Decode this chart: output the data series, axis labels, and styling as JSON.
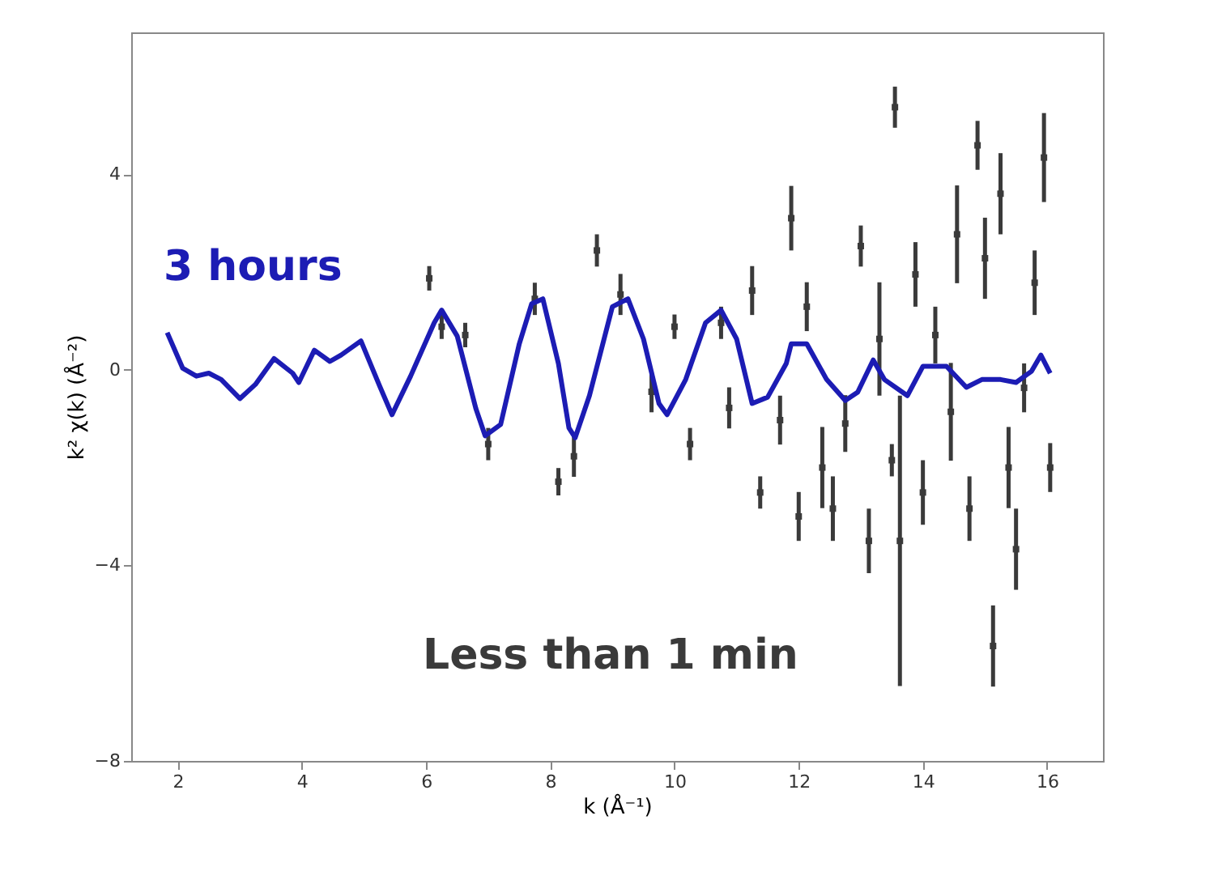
{
  "chart_data": {
    "type": "line",
    "xlabel": "k (Å⁻¹)",
    "ylabel": "k² χ(k) (Å⁻²)",
    "xlim": [
      1.25,
      16.9
    ],
    "ylim": [
      -8,
      6.9
    ],
    "xticks": [
      2,
      4,
      6,
      8,
      10,
      12,
      14,
      16
    ],
    "yticks": [
      -8,
      -4,
      0,
      4
    ],
    "grid": false,
    "marker": "none",
    "series": [
      {
        "name": "Less than 1 min",
        "type": "scatter",
        "marker": "square",
        "color": "#3a3a3a",
        "x": [
          6.05,
          6.25,
          6.63,
          7.0,
          7.75,
          8.13,
          8.38,
          8.75,
          9.13,
          9.63,
          10.0,
          10.25,
          10.75,
          10.88,
          11.25,
          11.38,
          11.7,
          11.88,
          12.0,
          12.13,
          12.38,
          12.55,
          12.75,
          13.0,
          13.13,
          13.3,
          13.5,
          13.55,
          13.63,
          13.88,
          14.0,
          14.2,
          14.45,
          14.55,
          14.75,
          14.88,
          15.0,
          15.13,
          15.25,
          15.38,
          15.5,
          15.63,
          15.8,
          15.95,
          16.05
        ],
        "values": [
          1.87,
          0.88,
          0.71,
          -1.52,
          1.45,
          -2.29,
          -1.77,
          2.44,
          1.54,
          -0.45,
          0.88,
          -1.52,
          0.96,
          -0.78,
          1.62,
          -2.51,
          -1.03,
          3.1,
          -3.0,
          1.29,
          -2.0,
          -2.84,
          -1.1,
          2.53,
          -3.5,
          0.63,
          -1.85,
          5.37,
          -3.5,
          1.95,
          -2.51,
          0.71,
          -0.86,
          2.77,
          -2.84,
          4.59,
          2.28,
          -5.65,
          3.6,
          -2.0,
          -3.67,
          -0.37,
          1.78,
          4.34,
          -2.0
        ],
        "errors": [
          0.25,
          0.25,
          0.25,
          0.33,
          0.33,
          0.28,
          0.42,
          0.33,
          0.42,
          0.42,
          0.25,
          0.33,
          0.33,
          0.42,
          0.5,
          0.33,
          0.5,
          0.66,
          0.5,
          0.5,
          0.83,
          0.66,
          0.58,
          0.42,
          0.66,
          1.16,
          0.33,
          0.42,
          2.97,
          0.66,
          0.66,
          0.58,
          1.0,
          1.0,
          0.66,
          0.5,
          0.83,
          0.83,
          0.83,
          0.83,
          0.83,
          0.5,
          0.66,
          0.91,
          0.5
        ]
      },
      {
        "name": "3 hours",
        "color": "#1c1cb4",
        "x": [
          1.83,
          2.08,
          2.3,
          2.5,
          2.7,
          3.0,
          3.25,
          3.55,
          3.85,
          3.95,
          4.2,
          4.45,
          4.63,
          4.95,
          5.25,
          5.45,
          5.75,
          6.13,
          6.25,
          6.5,
          6.8,
          6.95,
          7.2,
          7.5,
          7.7,
          7.88,
          8.13,
          8.3,
          8.4,
          8.63,
          9.0,
          9.25,
          9.5,
          9.75,
          9.88,
          10.18,
          10.5,
          10.75,
          11.0,
          11.25,
          11.5,
          11.8,
          11.88,
          12.13,
          12.45,
          12.75,
          12.95,
          13.2,
          13.38,
          13.75,
          14.0,
          14.38,
          14.7,
          14.95,
          15.25,
          15.5,
          15.75,
          15.9,
          16.05
        ],
        "values": [
          0.76,
          0.03,
          -0.13,
          -0.07,
          -0.2,
          -0.59,
          -0.3,
          0.23,
          -0.07,
          -0.26,
          0.4,
          0.17,
          0.3,
          0.59,
          -0.33,
          -0.92,
          -0.13,
          0.96,
          1.22,
          0.69,
          -0.79,
          -1.35,
          -1.12,
          0.53,
          1.35,
          1.45,
          0.13,
          -1.19,
          -1.39,
          -0.53,
          1.29,
          1.45,
          0.63,
          -0.69,
          -0.92,
          -0.2,
          0.96,
          1.22,
          0.63,
          -0.69,
          -0.56,
          0.13,
          0.53,
          0.53,
          -0.2,
          -0.63,
          -0.46,
          0.2,
          -0.2,
          -0.53,
          0.07,
          0.07,
          -0.36,
          -0.2,
          -0.2,
          -0.26,
          -0.03,
          0.3,
          -0.07
        ]
      }
    ]
  }
}
